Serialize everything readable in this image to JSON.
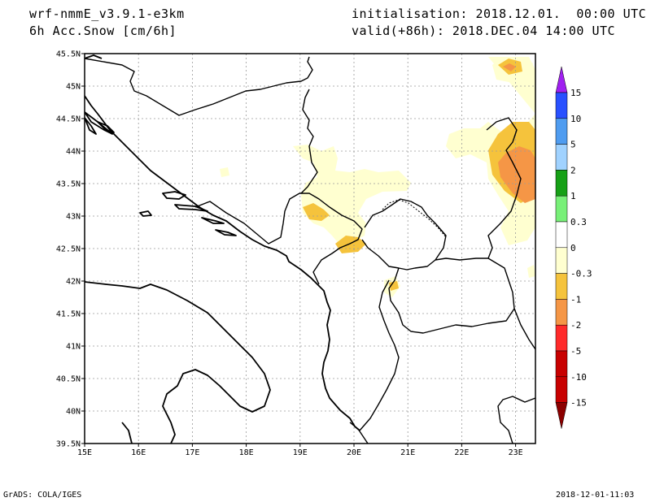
{
  "header": {
    "model": "wrf-nmmE_v3.9.1-e3km",
    "field": "6h Acc.Snow [cm/6h]",
    "initialisation": "initialisation: 2018.12.01.  00:00 UTC",
    "valid": "valid(+86h): 2018.DEC.04 14:00 UTC"
  },
  "axes": {
    "lon_labels": [
      "15E",
      "16E",
      "17E",
      "18E",
      "19E",
      "20E",
      "21E",
      "22E",
      "23E"
    ],
    "lat_labels": [
      "45.5N",
      "45N",
      "44.5N",
      "44N",
      "43.5N",
      "43N",
      "42.5N",
      "42N",
      "41.5N",
      "41N",
      "40.5N",
      "40N",
      "39.5N"
    ]
  },
  "colorbar": {
    "labels": [
      "15",
      "10",
      "5",
      "2",
      "1",
      "0.3",
      "0",
      "-0.3",
      "-1",
      "-2",
      "-5",
      "-10",
      "-15"
    ],
    "colors": [
      "#a020f0",
      "#2850ff",
      "#4f9cf0",
      "#a0d2ff",
      "#16a016",
      "#78f078",
      "#ffffff",
      "#ffffd0",
      "#f5c33c",
      "#f59646",
      "#ff2a2a",
      "#c80000",
      "#8c0000"
    ]
  },
  "snow_colors": {
    "light": "#ffffd0",
    "moderate": "#f5c33c",
    "heavy": "#f59646"
  },
  "footer": {
    "left": "GrADS: COLA/IGES",
    "right": "2018-12-01-11:03"
  }
}
